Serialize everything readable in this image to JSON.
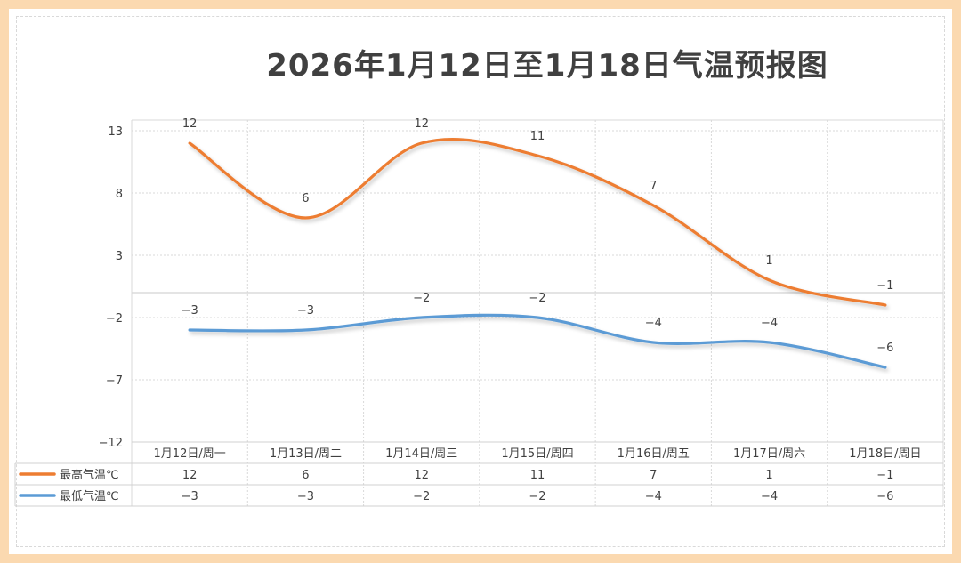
{
  "title": "2026年1月12日至1月18日气温预报图",
  "chart_data": {
    "type": "line",
    "title": "2026年1月12日至1月18日气温预报图",
    "categories": [
      "1月12日/周一",
      "1月13日/周二",
      "1月14日/周三",
      "1月15日/周四",
      "1月16日/周五",
      "1月17日/周六",
      "1月18日/周日"
    ],
    "series": [
      {
        "name": "最高气温℃",
        "values": [
          12,
          6,
          12,
          11,
          7,
          1,
          -1
        ],
        "color": "#ed7d31"
      },
      {
        "name": "最低气温℃",
        "values": [
          -3,
          -3,
          -2,
          -2,
          -4,
          -4,
          -6
        ],
        "color": "#5b9bd5"
      }
    ],
    "ylim": [
      -12,
      13
    ],
    "yticks": [
      13,
      8,
      3,
      -2,
      -7,
      -12
    ],
    "smooth": true,
    "data_labels": true,
    "data_table": true,
    "grid": true,
    "legend": "in data table"
  }
}
